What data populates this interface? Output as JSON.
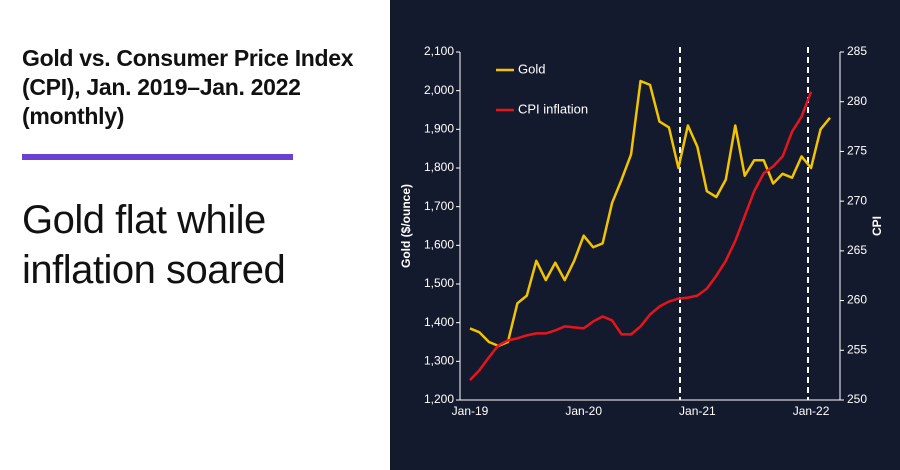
{
  "title": "Gold vs. Consumer Price Index (CPI), Jan. 2019–Jan. 2022 (monthly)",
  "subtitle": "Gold flat while inflation soared",
  "chart_data": {
    "type": "line",
    "categories": [
      "Jan-19",
      null,
      null,
      null,
      null,
      null,
      null,
      null,
      null,
      null,
      null,
      null,
      "Jan-20",
      null,
      null,
      null,
      null,
      null,
      null,
      null,
      null,
      null,
      null,
      null,
      "Jan-21",
      null,
      null,
      null,
      null,
      null,
      null,
      null,
      null,
      null,
      null,
      null,
      "Jan-22",
      null,
      null
    ],
    "series": [
      {
        "name": "Gold",
        "color": "#f2c300",
        "axis": "y",
        "values": [
          1385,
          1375,
          1350,
          1340,
          1350,
          1450,
          1470,
          1560,
          1510,
          1555,
          1510,
          1560,
          1625,
          1595,
          1605,
          1710,
          1770,
          1835,
          2025,
          2015,
          1920,
          1905,
          1800,
          1910,
          1855,
          1740,
          1725,
          1770,
          1910,
          1780,
          1820,
          1820,
          1760,
          1785,
          1775,
          1830,
          1800,
          1900,
          1930
        ]
      },
      {
        "name": "CPI inflation",
        "color": "#e8141c",
        "axis": "y2",
        "values": [
          252.0,
          253.0,
          254.3,
          255.5,
          256.0,
          256.2,
          256.5,
          256.7,
          256.7,
          257.0,
          257.4,
          257.3,
          257.2,
          257.9,
          258.4,
          258.0,
          256.6,
          256.6,
          257.4,
          258.6,
          259.4,
          259.9,
          260.2,
          260.3,
          260.5,
          261.2,
          262.5,
          264.0,
          266.0,
          268.5,
          271.0,
          272.8,
          273.5,
          274.5,
          277.0,
          278.5,
          281.0,
          null,
          null
        ]
      }
    ],
    "ylabel": "Gold ($/ounce)",
    "y2label": "CPI",
    "ylim": [
      1200,
      2100
    ],
    "yticks": [
      {
        "value": 1200,
        "label": "1,200"
      },
      {
        "value": 1300,
        "label": "1,300"
      },
      {
        "value": 1400,
        "label": "1,400"
      },
      {
        "value": 1500,
        "label": "1,500"
      },
      {
        "value": 1600,
        "label": "1,600"
      },
      {
        "value": 1700,
        "label": "1,700"
      },
      {
        "value": 1800,
        "label": "1,800"
      },
      {
        "value": 1900,
        "label": "1,900"
      },
      {
        "value": 2000,
        "label": "2,000"
      },
      {
        "value": 2100,
        "label": "2,100"
      }
    ],
    "y2lim": [
      250,
      285
    ],
    "y2ticks": [
      250,
      255,
      260,
      265,
      270,
      275,
      280,
      285
    ],
    "legend": "top-left",
    "grid": false
  }
}
